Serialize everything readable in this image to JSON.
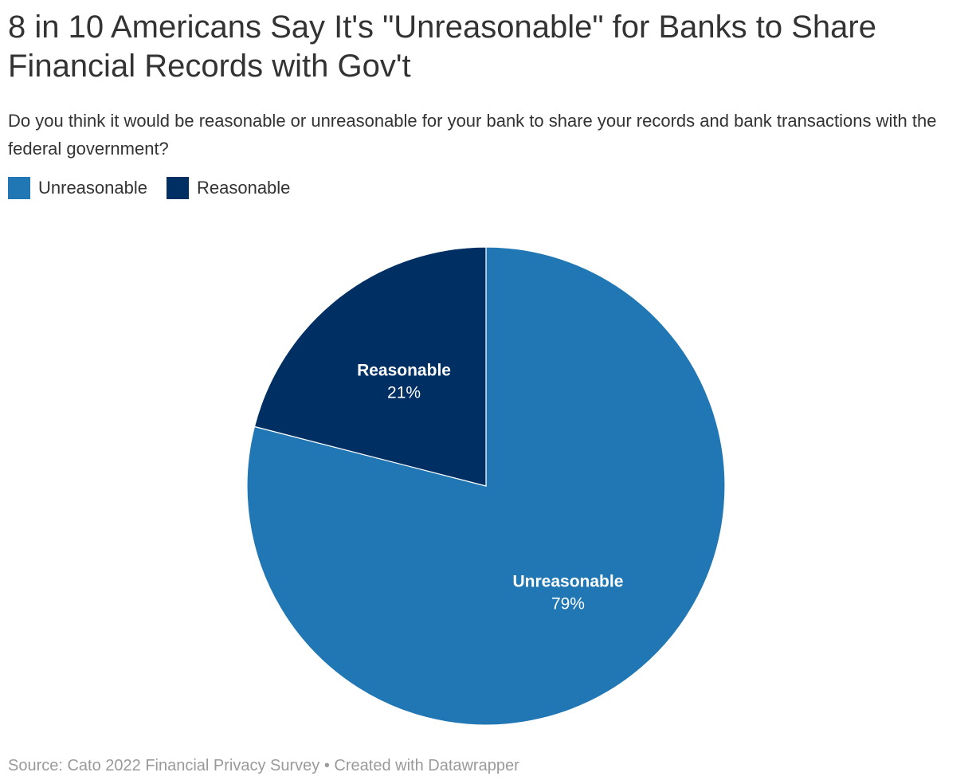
{
  "header": {
    "title": "8 in 10 Americans Say It's \"Unreasonable\" for Banks to Share Financial Records with Gov't",
    "subtitle": "Do you think it would be reasonable or unreasonable for your bank to share your records and bank transactions with the federal government?"
  },
  "legend": {
    "items": [
      {
        "label": "Unreasonable",
        "color": "#2077b4"
      },
      {
        "label": "Reasonable",
        "color": "#002f63"
      }
    ]
  },
  "footer": {
    "source": "Source: Cato 2022 Financial Privacy Survey • Created with Datawrapper"
  },
  "chart_data": {
    "type": "pie",
    "title": "8 in 10 Americans Say It's \"Unreasonable\" for Banks to Share Financial Records with Gov't",
    "categories": [
      "Unreasonable",
      "Reasonable"
    ],
    "values": [
      79,
      21
    ],
    "value_labels": [
      "79%",
      "21%"
    ],
    "colors": [
      "#2077b4",
      "#002f63"
    ],
    "legend_position": "top-left",
    "start_angle": "12 o'clock, clockwise"
  }
}
